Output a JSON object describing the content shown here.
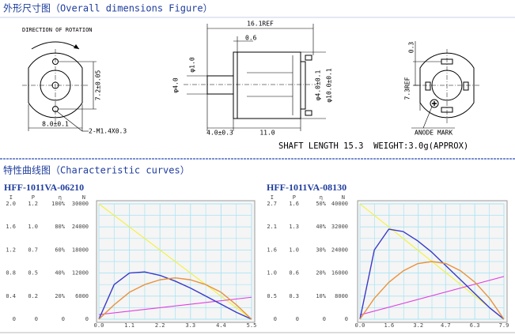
{
  "header": {
    "title": "外形尺寸图（Overall dimensions Figure）"
  },
  "drawing": {
    "labels": [
      "DIRECTION OF ROTATION",
      "7.2±0.05",
      "8.0±0.1",
      "2-M1.4X0.3",
      "16.1REF",
      "0.6",
      "φ1.0",
      "φ4.0",
      "φ4.0±0.1",
      "φ10.0±0.1",
      "4.0±0.3",
      "11.0",
      "0.3",
      "7.3REF",
      "ANODE MARK"
    ],
    "note": "SHAFT LENGTH 15.3  WEIGHT:3.0g(APPROX)"
  },
  "section": {
    "title": "特性曲线图（Characteristic curves）"
  },
  "chart_data": [
    {
      "type": "line",
      "title": "HFF-1011VA-06210",
      "xlim": [
        0,
        5.5
      ],
      "xticks": [
        {
          "value": 0,
          "label": "0.0"
        },
        1.1,
        2.2,
        3.3,
        4.4,
        5.5
      ],
      "axes": [
        {
          "name": "I",
          "ylim": [
            0,
            2
          ],
          "yticks": [
            0,
            0.4,
            0.8,
            1.2,
            1.6,
            {
              "value": 2,
              "label": "2.0"
            }
          ]
        },
        {
          "name": "P",
          "ylim": [
            0,
            1.2
          ],
          "yticks": [
            0,
            0.2,
            0.5,
            0.7,
            {
              "value": 1,
              "label": "1.0"
            },
            1.2
          ]
        },
        {
          "name": "η",
          "ylim": [
            0,
            100
          ],
          "yticks": [
            0,
            {
              "value": 20,
              "label": "20%"
            },
            {
              "value": 40,
              "label": "40%"
            },
            {
              "value": 60,
              "label": "60%"
            },
            {
              "value": 80,
              "label": "80%"
            },
            {
              "value": 100,
              "label": "100%"
            }
          ]
        },
        {
          "name": "N",
          "ylim": [
            0,
            30000
          ],
          "yticks": [
            0,
            6000,
            12000,
            18000,
            24000,
            30000
          ]
        }
      ],
      "grid": true,
      "series": [
        {
          "axis": 3,
          "color": "#f2f23a",
          "x": [
            0,
            5.5
          ],
          "values": [
            30000,
            0
          ]
        },
        {
          "axis": 0,
          "color": "#e040e0",
          "x": [
            0,
            5.5
          ],
          "values": [
            0.08,
            0.38
          ]
        },
        {
          "axis": 2,
          "color": "#3a3ac8",
          "x": [
            0,
            0.55,
            1.1,
            1.65,
            2.2,
            2.75,
            3.3,
            3.85,
            4.4,
            4.95,
            5.5
          ],
          "values": [
            0,
            30,
            40,
            41,
            38,
            33,
            27,
            20,
            13,
            6,
            0
          ]
        },
        {
          "axis": 1,
          "color": "#e8923c",
          "x": [
            0,
            0.55,
            1.1,
            1.65,
            2.2,
            2.75,
            3.3,
            3.85,
            4.4,
            4.95,
            5.5
          ],
          "values": [
            0,
            0.15,
            0.28,
            0.36,
            0.41,
            0.43,
            0.41,
            0.36,
            0.28,
            0.15,
            0
          ]
        }
      ]
    },
    {
      "type": "line",
      "title": "HFF-1011VA-08130",
      "xlim": [
        0,
        7.9
      ],
      "xticks": [
        {
          "value": 0,
          "label": "0.0"
        },
        1.6,
        3.2,
        4.7,
        6.3,
        7.9
      ],
      "axes": [
        {
          "name": "I",
          "ylim": [
            0,
            2.7
          ],
          "yticks": [
            0,
            0.5,
            {
              "value": 1,
              "label": "1.0"
            },
            1.6,
            2.1,
            2.7
          ]
        },
        {
          "name": "P",
          "ylim": [
            0,
            1.6
          ],
          "yticks": [
            0,
            0.3,
            0.6,
            {
              "value": 1,
              "label": "1.0"
            },
            1.3,
            1.6
          ]
        },
        {
          "name": "η",
          "ylim": [
            0,
            50
          ],
          "yticks": [
            0,
            {
              "value": 10,
              "label": "10%"
            },
            {
              "value": 20,
              "label": "20%"
            },
            {
              "value": 30,
              "label": "30%"
            },
            {
              "value": 40,
              "label": "40%"
            },
            {
              "value": 50,
              "label": "50%"
            }
          ]
        },
        {
          "name": "N",
          "ylim": [
            0,
            40000
          ],
          "yticks": [
            0,
            8000,
            16000,
            24000,
            32000,
            40000
          ]
        }
      ],
      "grid": true,
      "series": [
        {
          "axis": 3,
          "color": "#f2f23a",
          "x": [
            0,
            7.9
          ],
          "values": [
            40000,
            0
          ]
        },
        {
          "axis": 0,
          "color": "#e040e0",
          "x": [
            0,
            7.9
          ],
          "values": [
            0.1,
            1.0
          ]
        },
        {
          "axis": 2,
          "color": "#3a3ac8",
          "x": [
            0,
            0.79,
            1.58,
            2.37,
            3.16,
            3.95,
            4.74,
            5.53,
            6.32,
            7.11,
            7.9
          ],
          "values": [
            0,
            30,
            39,
            38,
            34,
            29,
            23,
            17,
            11,
            5,
            0
          ]
        },
        {
          "axis": 1,
          "color": "#e8923c",
          "x": [
            0,
            0.79,
            1.58,
            2.37,
            3.16,
            3.95,
            4.74,
            5.53,
            6.32,
            7.11,
            7.9
          ],
          "values": [
            0,
            0.29,
            0.51,
            0.67,
            0.77,
            0.8,
            0.77,
            0.67,
            0.51,
            0.29,
            0
          ]
        }
      ]
    }
  ]
}
